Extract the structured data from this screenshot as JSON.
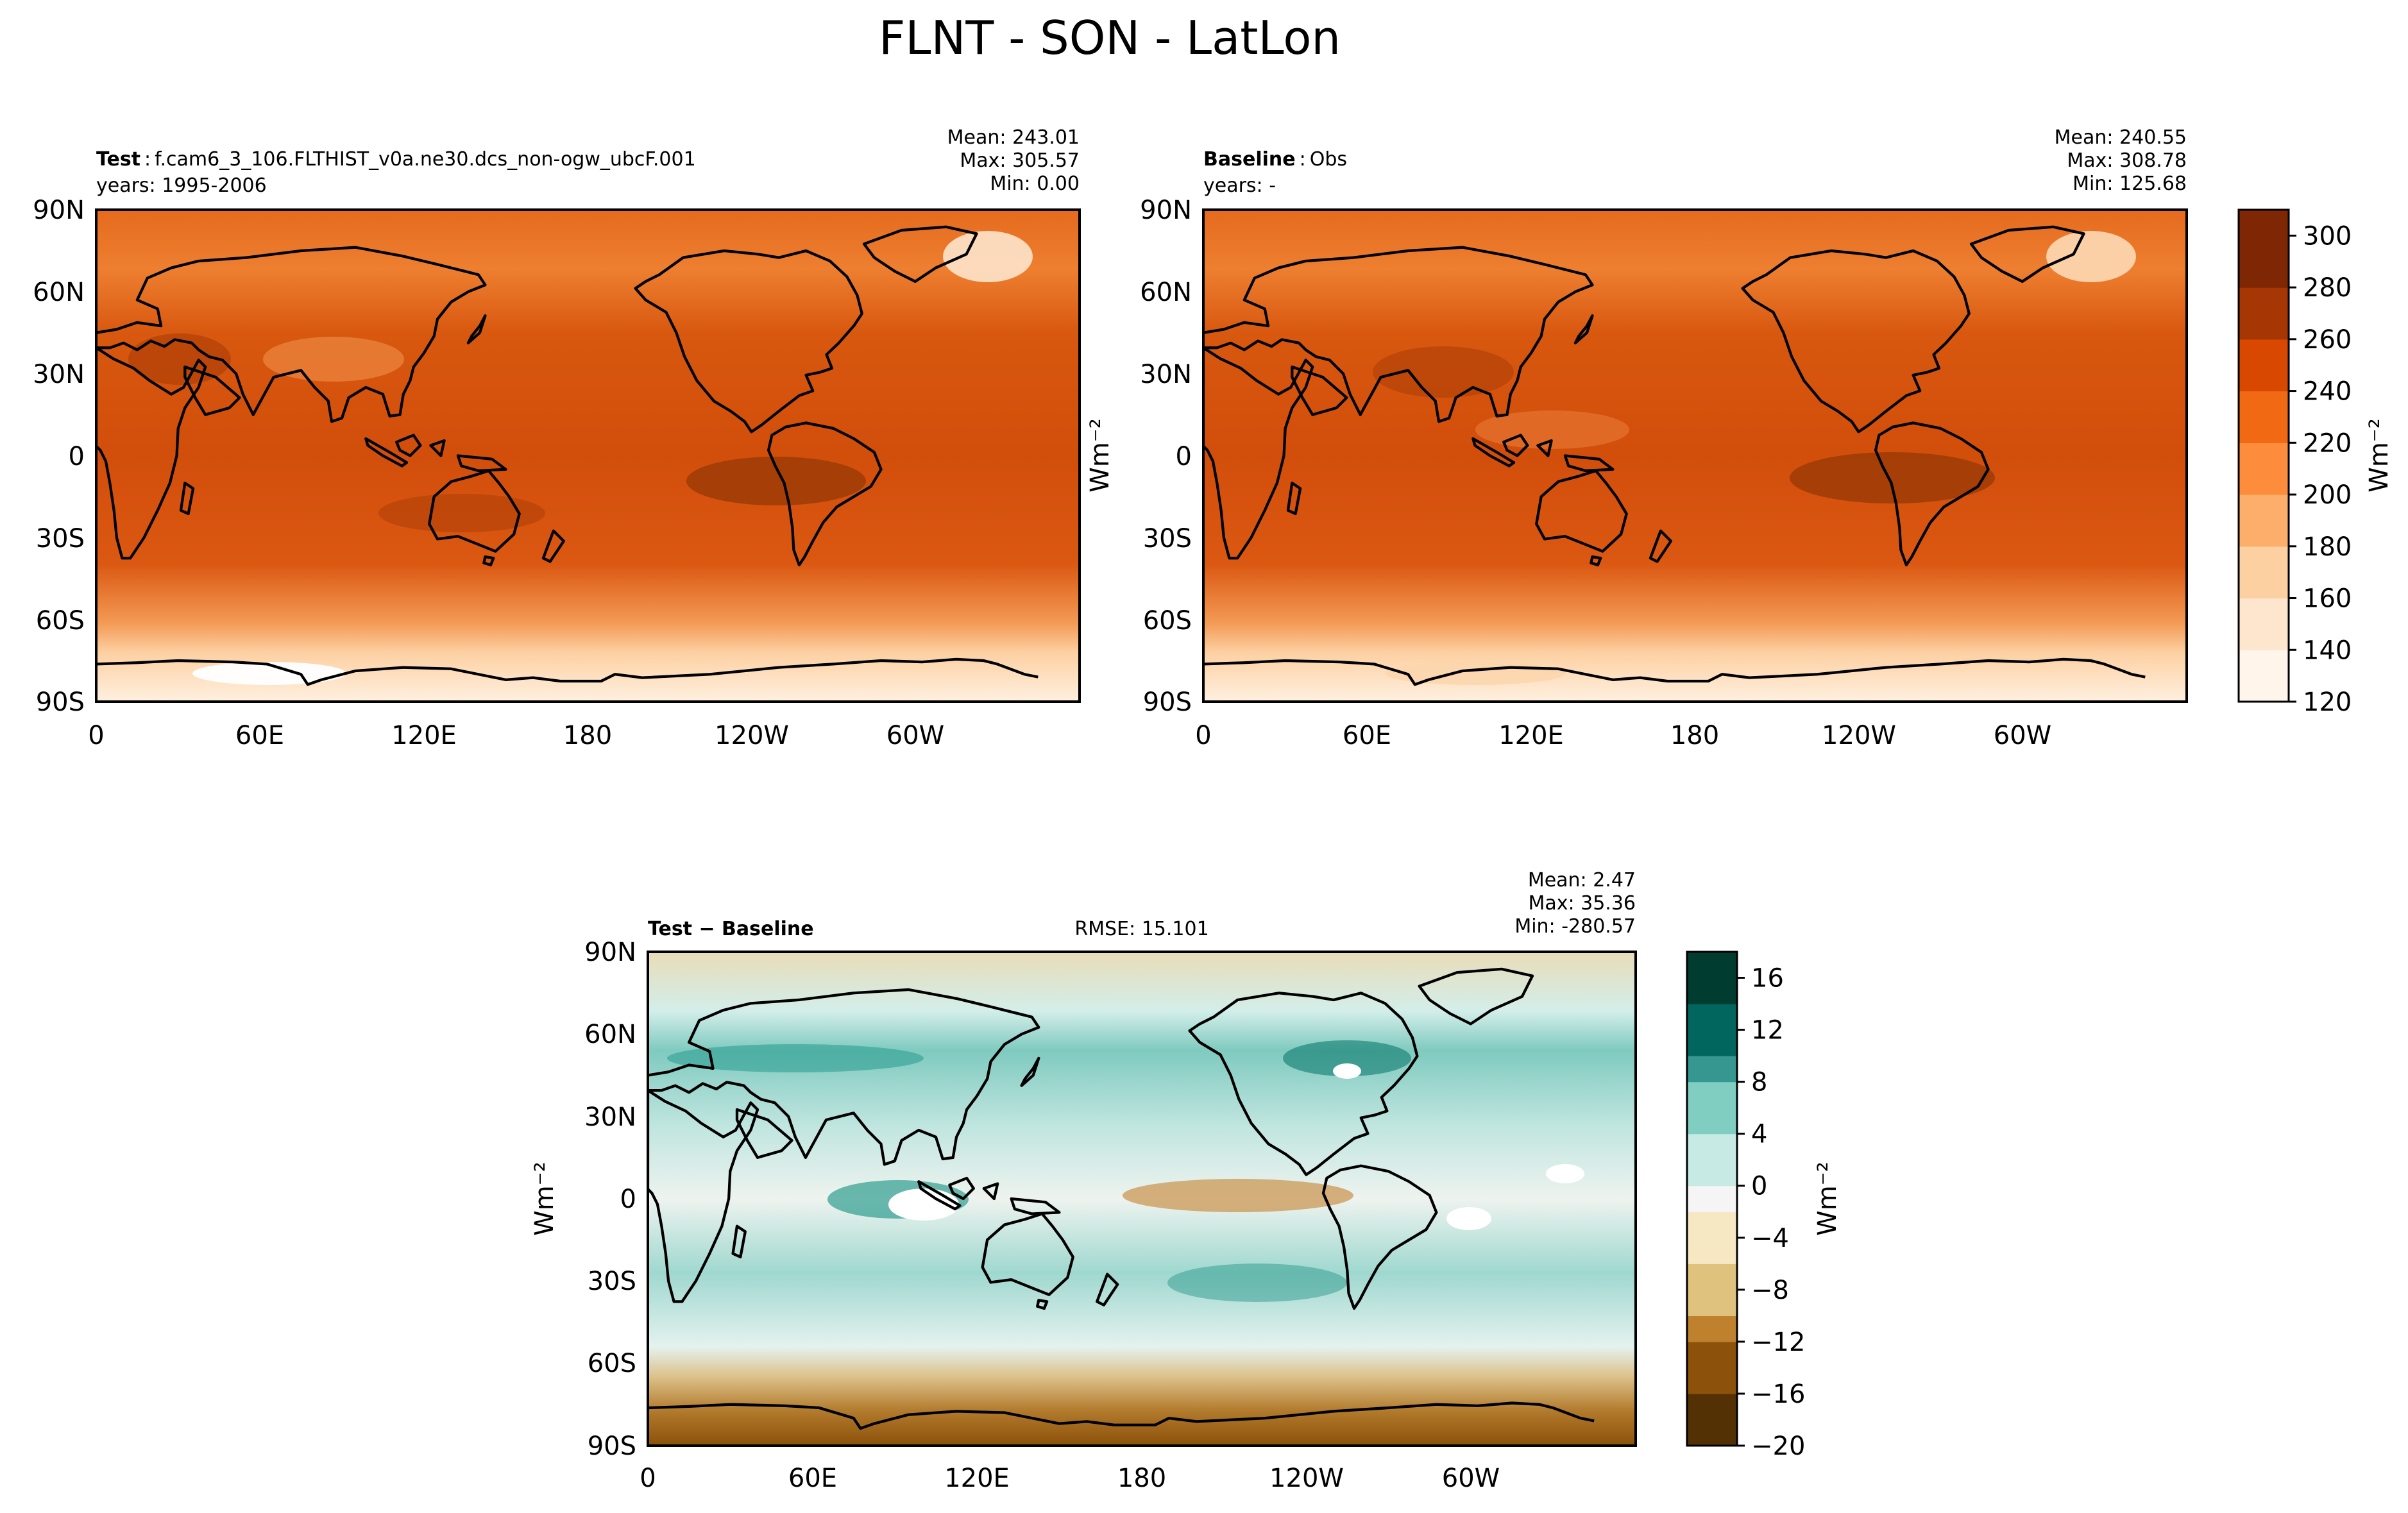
{
  "figure": {
    "suptitle": "FLNT - SON - LatLon"
  },
  "panels": {
    "test": {
      "label_bold": "Test",
      "label_sep": ":",
      "label_rest": "f.cam6_3_106.FLTHIST_v0a.ne30.dcs_non-ogw_ubcF.001",
      "years": "years: 1995-2006",
      "stats": {
        "mean": "Mean: 243.01",
        "max": "Max: 305.57",
        "min": "Min:  0.00"
      }
    },
    "baseline": {
      "label_bold": "Baseline",
      "label_sep": ":",
      "label_rest": "Obs",
      "years": "years: -",
      "stats": {
        "mean": "Mean: 240.55",
        "max": "Max: 308.78",
        "min": "Min: 125.68"
      }
    },
    "diff": {
      "label_bold": "Test − Baseline",
      "rmse": "RMSE: 15.101",
      "ylabel": "Wm⁻²",
      "stats": {
        "mean": "Mean:  2.47",
        "max": "Max: 35.36",
        "min": "Min: -280.57"
      }
    }
  },
  "axes": {
    "lat_ticks": [
      "90N",
      "60N",
      "30N",
      "0",
      "30S",
      "60S",
      "90S"
    ],
    "lon_ticks": [
      "0",
      "60E",
      "120E",
      "180",
      "120W",
      "60W"
    ]
  },
  "colorbars": {
    "main": {
      "label": "Wm⁻²",
      "ticks": [
        "300",
        "280",
        "260",
        "240",
        "220",
        "200",
        "180",
        "160",
        "140",
        "120"
      ],
      "range": [
        120,
        310
      ],
      "colors": [
        "#fff5eb",
        "#fee6ce",
        "#fdd0a2",
        "#fdae6b",
        "#fd8d3c",
        "#f16913",
        "#d94801",
        "#a63603",
        "#7f2704"
      ]
    },
    "diff": {
      "label": "Wm⁻²",
      "ticks": [
        "16",
        "12",
        "8",
        "4",
        "0",
        "−4",
        "−8",
        "−12",
        "−16",
        "−20"
      ],
      "range": [
        -20,
        18
      ],
      "colors": [
        "#543005",
        "#8c510a",
        "#bf812d",
        "#dfc27d",
        "#f6e8c3",
        "#f5f5f5",
        "#c7eae5",
        "#80cdc1",
        "#35978f",
        "#01665e",
        "#003c30"
      ]
    }
  },
  "chart_data": [
    {
      "type": "heatmap",
      "title": "Test : f.cam6_3_106.FLTHIST_v0a.ne30.dcs_non-ogw_ubcF.001",
      "subtitle": "years: 1995-2006",
      "xlabel": "",
      "ylabel": "",
      "x_ticks": [
        "0",
        "60E",
        "120E",
        "180",
        "120W",
        "60W"
      ],
      "y_ticks": [
        "90N",
        "60N",
        "30N",
        "0",
        "30S",
        "60S",
        "90S"
      ],
      "xlim": [
        0,
        360
      ],
      "ylim": [
        -90,
        90
      ],
      "zrange": [
        120,
        310
      ],
      "stats": {
        "mean": 243.01,
        "max": 305.57,
        "min": 0.0
      }
    },
    {
      "type": "heatmap",
      "title": "Baseline : Obs",
      "subtitle": "years: -",
      "xlabel": "",
      "ylabel": "Wm⁻²",
      "x_ticks": [
        "0",
        "60E",
        "120E",
        "180",
        "120W",
        "60W"
      ],
      "y_ticks": [
        "90N",
        "60N",
        "30N",
        "0",
        "30S",
        "60S",
        "90S"
      ],
      "xlim": [
        0,
        360
      ],
      "ylim": [
        -90,
        90
      ],
      "zrange": [
        120,
        310
      ],
      "stats": {
        "mean": 240.55,
        "max": 308.78,
        "min": 125.68
      }
    },
    {
      "type": "heatmap",
      "title": "Test − Baseline",
      "subtitle": "RMSE: 15.101",
      "xlabel": "",
      "ylabel": "Wm⁻²",
      "x_ticks": [
        "0",
        "60E",
        "120E",
        "180",
        "120W",
        "60W"
      ],
      "y_ticks": [
        "90N",
        "60N",
        "30N",
        "0",
        "30S",
        "60S",
        "90S"
      ],
      "xlim": [
        0,
        360
      ],
      "ylim": [
        -90,
        90
      ],
      "zrange": [
        -20,
        18
      ],
      "stats": {
        "mean": 2.47,
        "max": 35.36,
        "min": -280.57
      }
    }
  ]
}
